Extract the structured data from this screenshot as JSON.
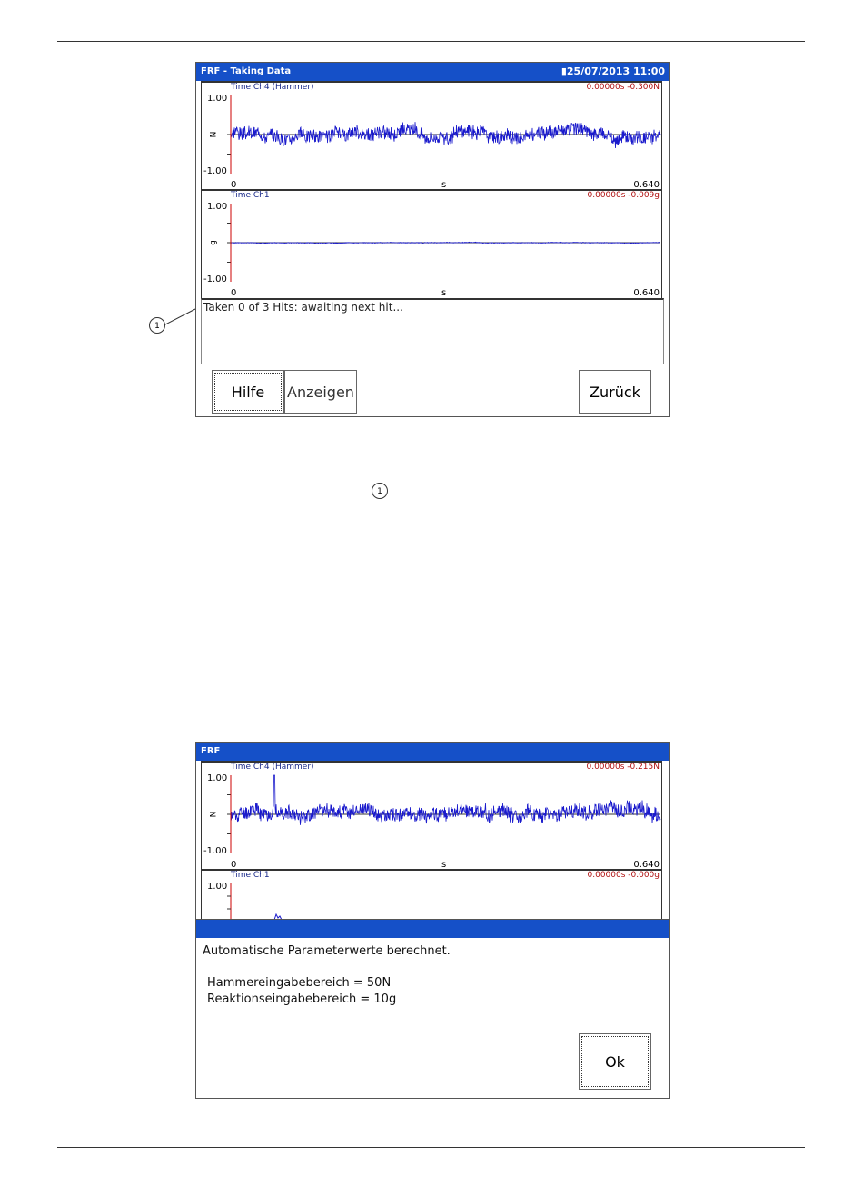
{
  "screen1": {
    "title": "FRF - Taking Data",
    "datetime": "25/07/2013 11:00",
    "status_icon": "battery-plug-icon",
    "plots": [
      {
        "title": "Time Ch4 (Hammer)",
        "readout": "0.00000s  -0.300N",
        "y_max": "1.00",
        "y_min": "-1.00",
        "y_unit": "N",
        "x_min": "0",
        "x_unit": "s",
        "x_max": "0.640"
      },
      {
        "title": "Time Ch1",
        "readout": "0.00000s  -0.009g",
        "y_max": "1.00",
        "y_min": "-1.00",
        "y_unit": "g",
        "x_min": "0",
        "x_unit": "s",
        "x_max": "0.640"
      }
    ],
    "status_text": "Taken 0 of 3 Hits: awaiting next hit...",
    "buttons": {
      "help": "Hilfe",
      "show": "Anzeigen",
      "back": "Zurück"
    },
    "callout": "1"
  },
  "legend_callout": "1",
  "screen2": {
    "title": "FRF",
    "plots": [
      {
        "title": "Time Ch4 (Hammer)",
        "readout": "0.00000s  -0.215N",
        "y_max": "1.00",
        "y_min": "-1.00",
        "y_unit": "N",
        "x_min": "0",
        "x_unit": "s",
        "x_max": "0.640"
      },
      {
        "title": "Time Ch1",
        "readout": "0.00000s  -0.000g",
        "y_max": "1.00"
      }
    ],
    "dialog": {
      "message": "Automatische Parameterwerte berechnet.",
      "line1": "Hammereingabebereich = 50N",
      "line2": "Reaktionseingabebereich = 10g",
      "ok": "Ok"
    }
  },
  "colors": {
    "titlebar": "#1550c8",
    "signal": "#1a1acc",
    "readout": "#b01010",
    "cursor": "#cc0000"
  }
}
